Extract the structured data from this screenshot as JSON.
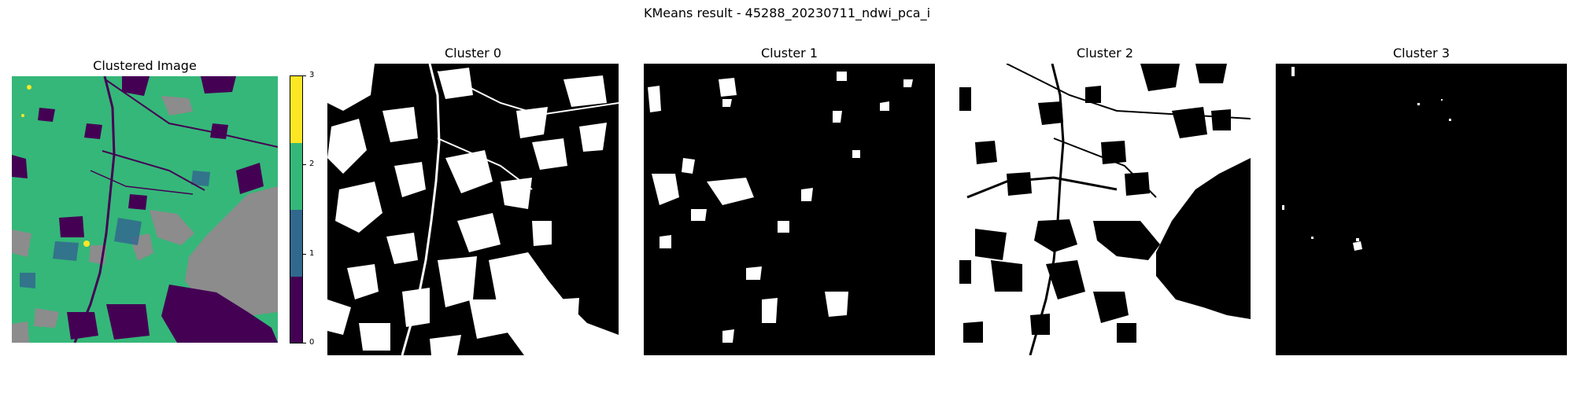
{
  "figure": {
    "suptitle": "KMeans result - 45288_20230711_ndwi_pca_i"
  },
  "panels": {
    "clustered": {
      "title": "Clustered Image"
    },
    "cluster0": {
      "title": "Cluster 0"
    },
    "cluster1": {
      "title": "Cluster 1"
    },
    "cluster2": {
      "title": "Cluster 2"
    },
    "cluster3": {
      "title": "Cluster 3"
    }
  },
  "colorbar": {
    "ticks": [
      "0",
      "1",
      "2",
      "3"
    ],
    "colors": [
      "#440154",
      "#31688e",
      "#35b779",
      "#fde725"
    ]
  },
  "palette": {
    "background_gray": "#8c8c8c",
    "mask_on": "#ffffff",
    "mask_off": "#000000"
  }
}
